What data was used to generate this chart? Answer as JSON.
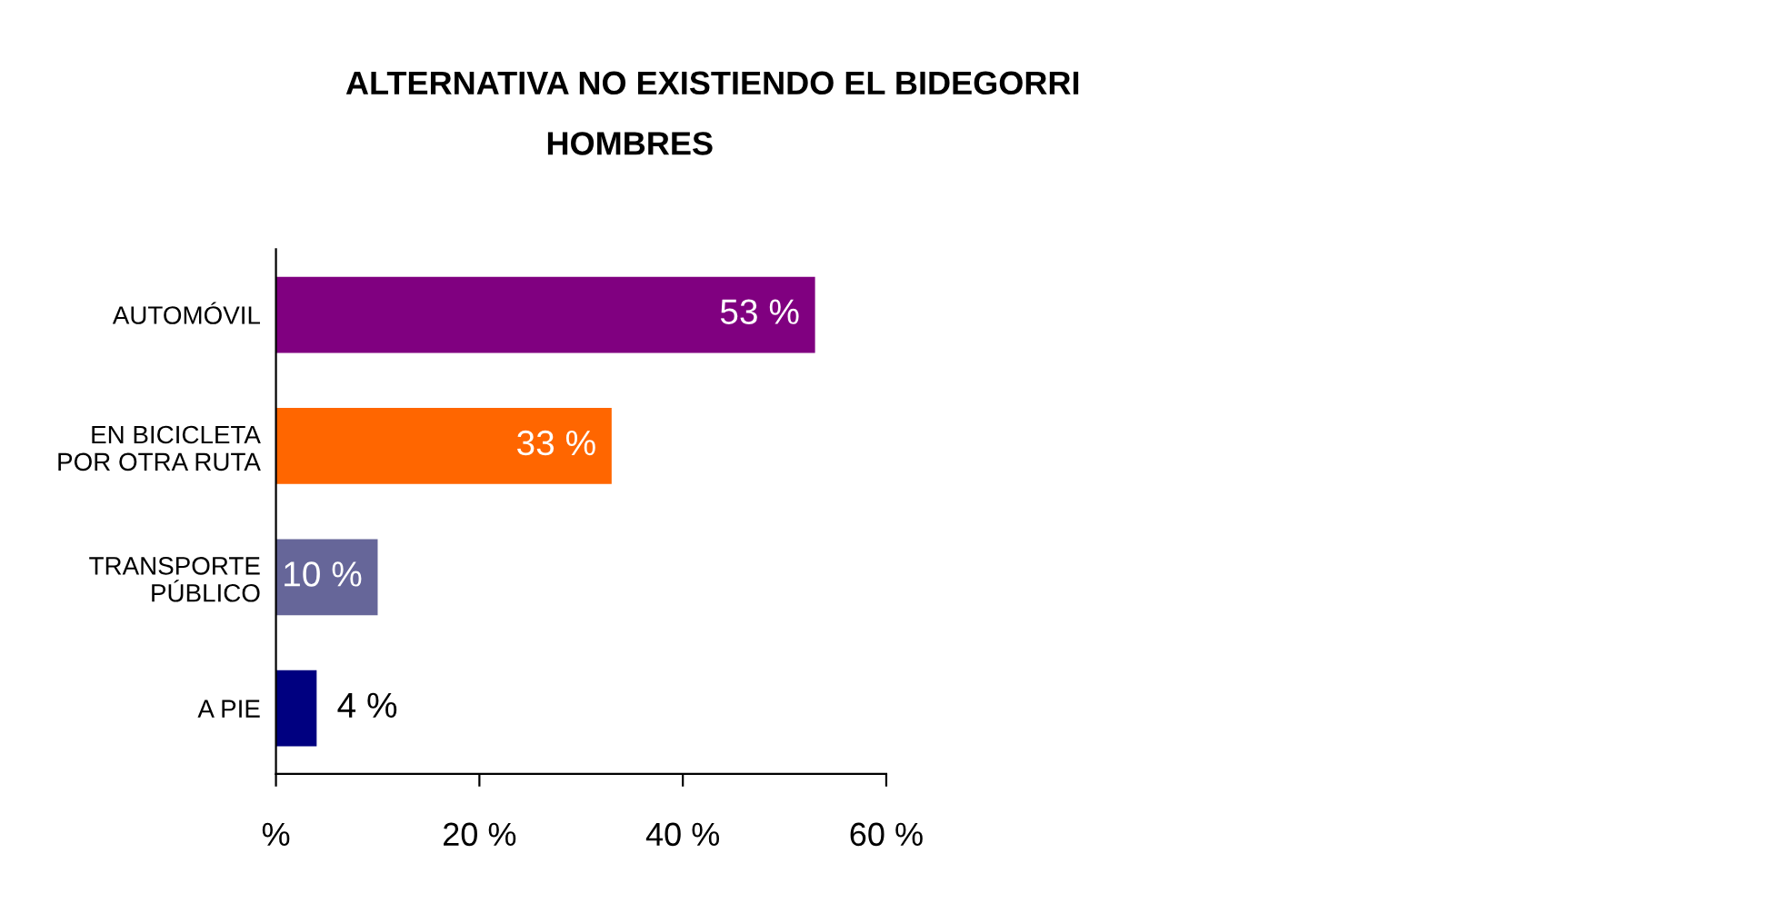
{
  "chart_data": {
    "type": "bar",
    "orientation": "horizontal",
    "title": "ALTERNATIVA NO EXISTIENDO EL BIDEGORRI",
    "subtitle": "HOMBRES",
    "categories": [
      "AUTOMÓVIL",
      "EN BICICLETA\nPOR OTRA RUTA",
      "TRANSPORTE\nPÚBLICO",
      "A PIE"
    ],
    "values": [
      53,
      33,
      10,
      4
    ],
    "colors": [
      "#800080",
      "#ff6600",
      "#666699",
      "#000080"
    ],
    "value_labels": [
      "53 %",
      "33 %",
      "10 %",
      "4 %"
    ],
    "xlim": [
      0,
      60
    ],
    "xticks": [
      {
        "value": 0,
        "label": "%"
      },
      {
        "value": 20,
        "label": "20 %"
      },
      {
        "value": 40,
        "label": "40 %"
      },
      {
        "value": 60,
        "label": "60 %"
      }
    ],
    "grid": false
  }
}
